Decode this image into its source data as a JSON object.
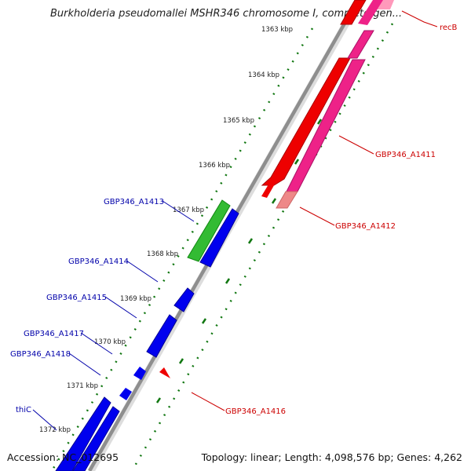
{
  "title": "Burkholderia pseudomallei MSHR346 chromosome I, complete gen...",
  "accession": "Accession: NC_012695",
  "summary": "Topology: linear; Length: 4,098,576 bp; Genes: 4,262",
  "ticks": [
    "1363 kbp",
    "1364 kbp",
    "1365 kbp",
    "1366 kbp",
    "1367 kbp",
    "1368 kbp",
    "1369 kbp",
    "1370 kbp",
    "1371 kbp",
    "1372 kbp"
  ],
  "genes": {
    "recB": "recB",
    "a1411": "GBP346_A1411",
    "a1412": "GBP346_A1412",
    "a1413": "GBP346_A1413",
    "a1414": "GBP346_A1414",
    "a1415": "GBP346_A1415",
    "a1416": "GBP346_A1416",
    "a1417": "GBP346_A1417",
    "a1418": "GBP346_A1418",
    "thiC": "thiC"
  },
  "colors": {
    "forward": "#ee0000",
    "forward_pink": "#ee2288",
    "forward_light": "#ee8888",
    "reverse": "#0000ee",
    "rna": "#33bb33",
    "backbone": "#999999",
    "ticks": "#117711",
    "label_red": "#cc0000",
    "label_blue": "#0000aa"
  }
}
